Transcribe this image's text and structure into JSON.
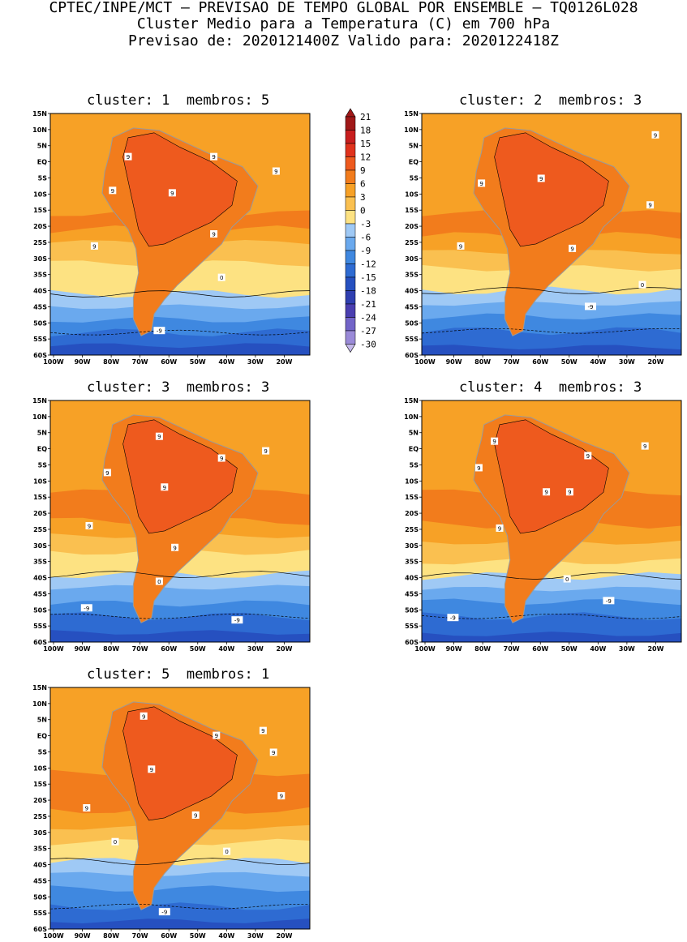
{
  "header": {
    "line1": "CPTEC/INPE/MCT – PREVISAO DE TEMPO GLOBAL POR ENSEMBLE – TQ0126L028",
    "line2": "Cluster Medio para a Temperatura (C) em 700 hPa",
    "line3": "Previsao de: 2020121400Z   Valido para: 2020122418Z"
  },
  "axes": {
    "lat_ticks": [
      "15N",
      "10N",
      "5N",
      "EQ",
      "5S",
      "10S",
      "15S",
      "20S",
      "25S",
      "30S",
      "35S",
      "40S",
      "45S",
      "50S",
      "55S",
      "60S"
    ],
    "lon_ticks": [
      "100W",
      "90W",
      "80W",
      "70W",
      "60W",
      "50W",
      "40W",
      "30W",
      "20W"
    ]
  },
  "colorbar": {
    "levels": [
      "21",
      "18",
      "15",
      "12",
      "9",
      "6",
      "3",
      "0",
      "-3",
      "-6",
      "-9",
      "-12",
      "-15",
      "-18",
      "-21",
      "-24",
      "-27",
      "-30"
    ],
    "colors": [
      "#a01818",
      "#c81e1e",
      "#e0321c",
      "#ee5a1e",
      "#f27c1c",
      "#f7a126",
      "#fac050",
      "#fde282",
      "#9fc9f5",
      "#6aa9ee",
      "#3f88e0",
      "#2e6bd2",
      "#2650c0",
      "#2f3fb0",
      "#4a3eb0",
      "#7264c8",
      "#9a8ad8",
      "#c4b8ea"
    ]
  },
  "panels": [
    {
      "cluster_label": "cluster:",
      "cluster": "1",
      "membros_label": "membros:",
      "membros": "5",
      "labels_pos": [
        "9",
        "9",
        "9",
        "9",
        "9",
        "9",
        "9"
      ],
      "label_zero": "0",
      "label_neg": "-9"
    },
    {
      "cluster_label": "cluster:",
      "cluster": "2",
      "membros_label": "membros:",
      "membros": "3",
      "labels_pos": [
        "9",
        "9",
        "9",
        "9",
        "9",
        "9"
      ],
      "label_zero": "0",
      "label_neg": "-9"
    },
    {
      "cluster_label": "cluster:",
      "cluster": "3",
      "membros_label": "membros:",
      "membros": "3",
      "labels_pos": [
        "9",
        "9",
        "9",
        "9",
        "9",
        "9",
        "9"
      ],
      "label_zero": "0",
      "label_neg": "-9",
      "label_neg2": "-9"
    },
    {
      "cluster_label": "cluster:",
      "cluster": "4",
      "membros_label": "membros:",
      "membros": "3",
      "labels_pos": [
        "9",
        "9",
        "9",
        "9",
        "9",
        "9",
        "9"
      ],
      "label_zero": "0",
      "label_neg": "-9",
      "label_neg2": "-9"
    },
    {
      "cluster_label": "cluster:",
      "cluster": "5",
      "membros_label": "membros:",
      "membros": "1",
      "labels_pos": [
        "9",
        "9",
        "9",
        "9",
        "9",
        "9",
        "9",
        "9"
      ],
      "label_zero": "0",
      "label_zero2": "0",
      "label_neg": "-9"
    }
  ]
}
